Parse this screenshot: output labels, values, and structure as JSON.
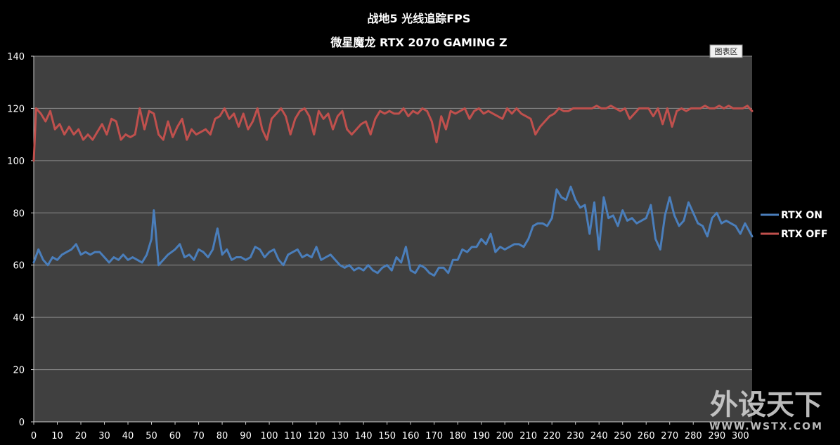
{
  "chart_data": {
    "type": "line",
    "title": "战地5 光线追踪FPS",
    "subtitle": "微星魔龙 RTX 2070 GAMING Z",
    "xlabel": "",
    "ylabel": "",
    "xlim": [
      0,
      305
    ],
    "ylim": [
      0,
      140
    ],
    "x_ticks": [
      0,
      10,
      20,
      30,
      40,
      50,
      60,
      70,
      80,
      90,
      100,
      110,
      120,
      130,
      140,
      150,
      160,
      170,
      180,
      190,
      200,
      210,
      220,
      230,
      240,
      250,
      260,
      270,
      280,
      290,
      300
    ],
    "y_ticks": [
      0,
      20,
      40,
      60,
      80,
      100,
      120,
      140
    ],
    "grid": true,
    "legend_position": "right",
    "series": [
      {
        "name": "RTX ON",
        "color": "#4a7ebb",
        "x": [
          0,
          2,
          4,
          6,
          8,
          10,
          12,
          14,
          16,
          18,
          20,
          22,
          24,
          26,
          28,
          30,
          32,
          34,
          36,
          38,
          40,
          42,
          44,
          46,
          48,
          50,
          51,
          53,
          55,
          57,
          60,
          62,
          64,
          66,
          68,
          70,
          72,
          74,
          76,
          78,
          80,
          82,
          84,
          86,
          88,
          90,
          92,
          94,
          96,
          98,
          100,
          102,
          104,
          106,
          108,
          110,
          112,
          114,
          116,
          118,
          120,
          122,
          124,
          126,
          128,
          130,
          132,
          134,
          136,
          138,
          140,
          142,
          144,
          146,
          148,
          150,
          152,
          154,
          156,
          158,
          160,
          162,
          164,
          166,
          168,
          170,
          172,
          174,
          176,
          178,
          180,
          182,
          184,
          186,
          188,
          190,
          192,
          194,
          196,
          198,
          200,
          202,
          204,
          206,
          208,
          210,
          212,
          214,
          216,
          218,
          220,
          222,
          224,
          226,
          228,
          230,
          232,
          234,
          236,
          238,
          240,
          242,
          244,
          246,
          248,
          250,
          252,
          254,
          256,
          258,
          260,
          262,
          264,
          266,
          268,
          270,
          272,
          274,
          276,
          278,
          280,
          282,
          284,
          286,
          288,
          290,
          292,
          294,
          296,
          298,
          300,
          302,
          305
        ],
        "values": [
          61,
          66,
          62,
          60,
          63,
          62,
          64,
          65,
          66,
          68,
          64,
          65,
          64,
          65,
          65,
          63,
          61,
          63,
          62,
          64,
          62,
          63,
          62,
          61,
          64,
          70,
          81,
          60,
          62,
          64,
          66,
          68,
          63,
          64,
          62,
          66,
          65,
          63,
          66,
          74,
          64,
          66,
          62,
          63,
          63,
          62,
          63,
          67,
          66,
          63,
          65,
          66,
          62,
          60,
          64,
          65,
          66,
          63,
          64,
          63,
          67,
          62,
          63,
          64,
          62,
          60,
          59,
          60,
          58,
          59,
          58,
          60,
          58,
          57,
          59,
          60,
          58,
          63,
          61,
          67,
          58,
          57,
          60,
          59,
          57,
          56,
          59,
          59,
          57,
          62,
          62,
          66,
          65,
          67,
          67,
          70,
          68,
          72,
          65,
          67,
          66,
          67,
          68,
          68,
          67,
          70,
          75,
          76,
          76,
          75,
          78,
          89,
          86,
          85,
          90,
          85,
          82,
          83,
          72,
          84,
          66,
          86,
          78,
          79,
          75,
          81,
          77,
          78,
          76,
          77,
          78,
          83,
          70,
          66,
          79,
          86,
          79,
          75,
          77,
          84,
          80,
          76,
          75,
          71,
          78,
          80,
          76,
          77,
          76,
          75,
          72,
          76,
          71
        ]
      },
      {
        "name": "RTX OFF",
        "color": "#c0504d",
        "x": [
          0,
          1,
          3,
          5,
          7,
          9,
          11,
          13,
          15,
          17,
          19,
          21,
          23,
          25,
          27,
          29,
          31,
          33,
          35,
          37,
          39,
          41,
          43,
          45,
          47,
          49,
          51,
          53,
          55,
          57,
          59,
          61,
          63,
          65,
          67,
          69,
          71,
          73,
          75,
          77,
          79,
          81,
          83,
          85,
          87,
          89,
          91,
          93,
          95,
          97,
          99,
          101,
          103,
          105,
          107,
          109,
          111,
          113,
          115,
          117,
          119,
          121,
          123,
          125,
          127,
          129,
          131,
          133,
          135,
          137,
          139,
          141,
          143,
          145,
          147,
          149,
          151,
          153,
          155,
          157,
          159,
          161,
          163,
          165,
          167,
          169,
          171,
          173,
          175,
          177,
          179,
          181,
          183,
          185,
          187,
          189,
          191,
          193,
          195,
          197,
          199,
          201,
          203,
          205,
          207,
          209,
          211,
          213,
          215,
          217,
          219,
          221,
          223,
          225,
          227,
          229,
          231,
          233,
          235,
          237,
          239,
          241,
          243,
          245,
          247,
          249,
          251,
          253,
          255,
          257,
          259,
          261,
          263,
          265,
          267,
          269,
          271,
          273,
          275,
          277,
          279,
          281,
          283,
          285,
          287,
          289,
          291,
          293,
          295,
          297,
          299,
          301,
          303,
          305
        ],
        "values": [
          100,
          120,
          118,
          115,
          119,
          112,
          114,
          110,
          113,
          110,
          112,
          108,
          110,
          108,
          111,
          114,
          110,
          116,
          115,
          108,
          110,
          109,
          110,
          120,
          112,
          119,
          118,
          110,
          108,
          115,
          109,
          113,
          116,
          108,
          112,
          110,
          111,
          112,
          110,
          116,
          117,
          120,
          116,
          118,
          113,
          118,
          112,
          115,
          120,
          112,
          108,
          116,
          118,
          120,
          117,
          110,
          116,
          119,
          120,
          117,
          110,
          119,
          116,
          118,
          112,
          117,
          119,
          112,
          110,
          112,
          114,
          115,
          110,
          116,
          119,
          118,
          119,
          118,
          118,
          120,
          117,
          119,
          118,
          120,
          119,
          115,
          107,
          117,
          112,
          119,
          118,
          119,
          120,
          116,
          119,
          120,
          118,
          119,
          118,
          117,
          116,
          120,
          118,
          120,
          118,
          117,
          116,
          110,
          113,
          115,
          117,
          118,
          120,
          119,
          119,
          120,
          120,
          120,
          120,
          120,
          121,
          120,
          120,
          121,
          120,
          119,
          120,
          116,
          118,
          120,
          120,
          120,
          117,
          120,
          114,
          120,
          113,
          119,
          120,
          119,
          120,
          120,
          120,
          121,
          120,
          120,
          121,
          120,
          121,
          120,
          120,
          120,
          121,
          119
        ]
      }
    ]
  },
  "ui": {
    "tooltip": "图表区",
    "watermark_main": "外设天下",
    "watermark_sub": "WWW.WSTX.COM"
  }
}
